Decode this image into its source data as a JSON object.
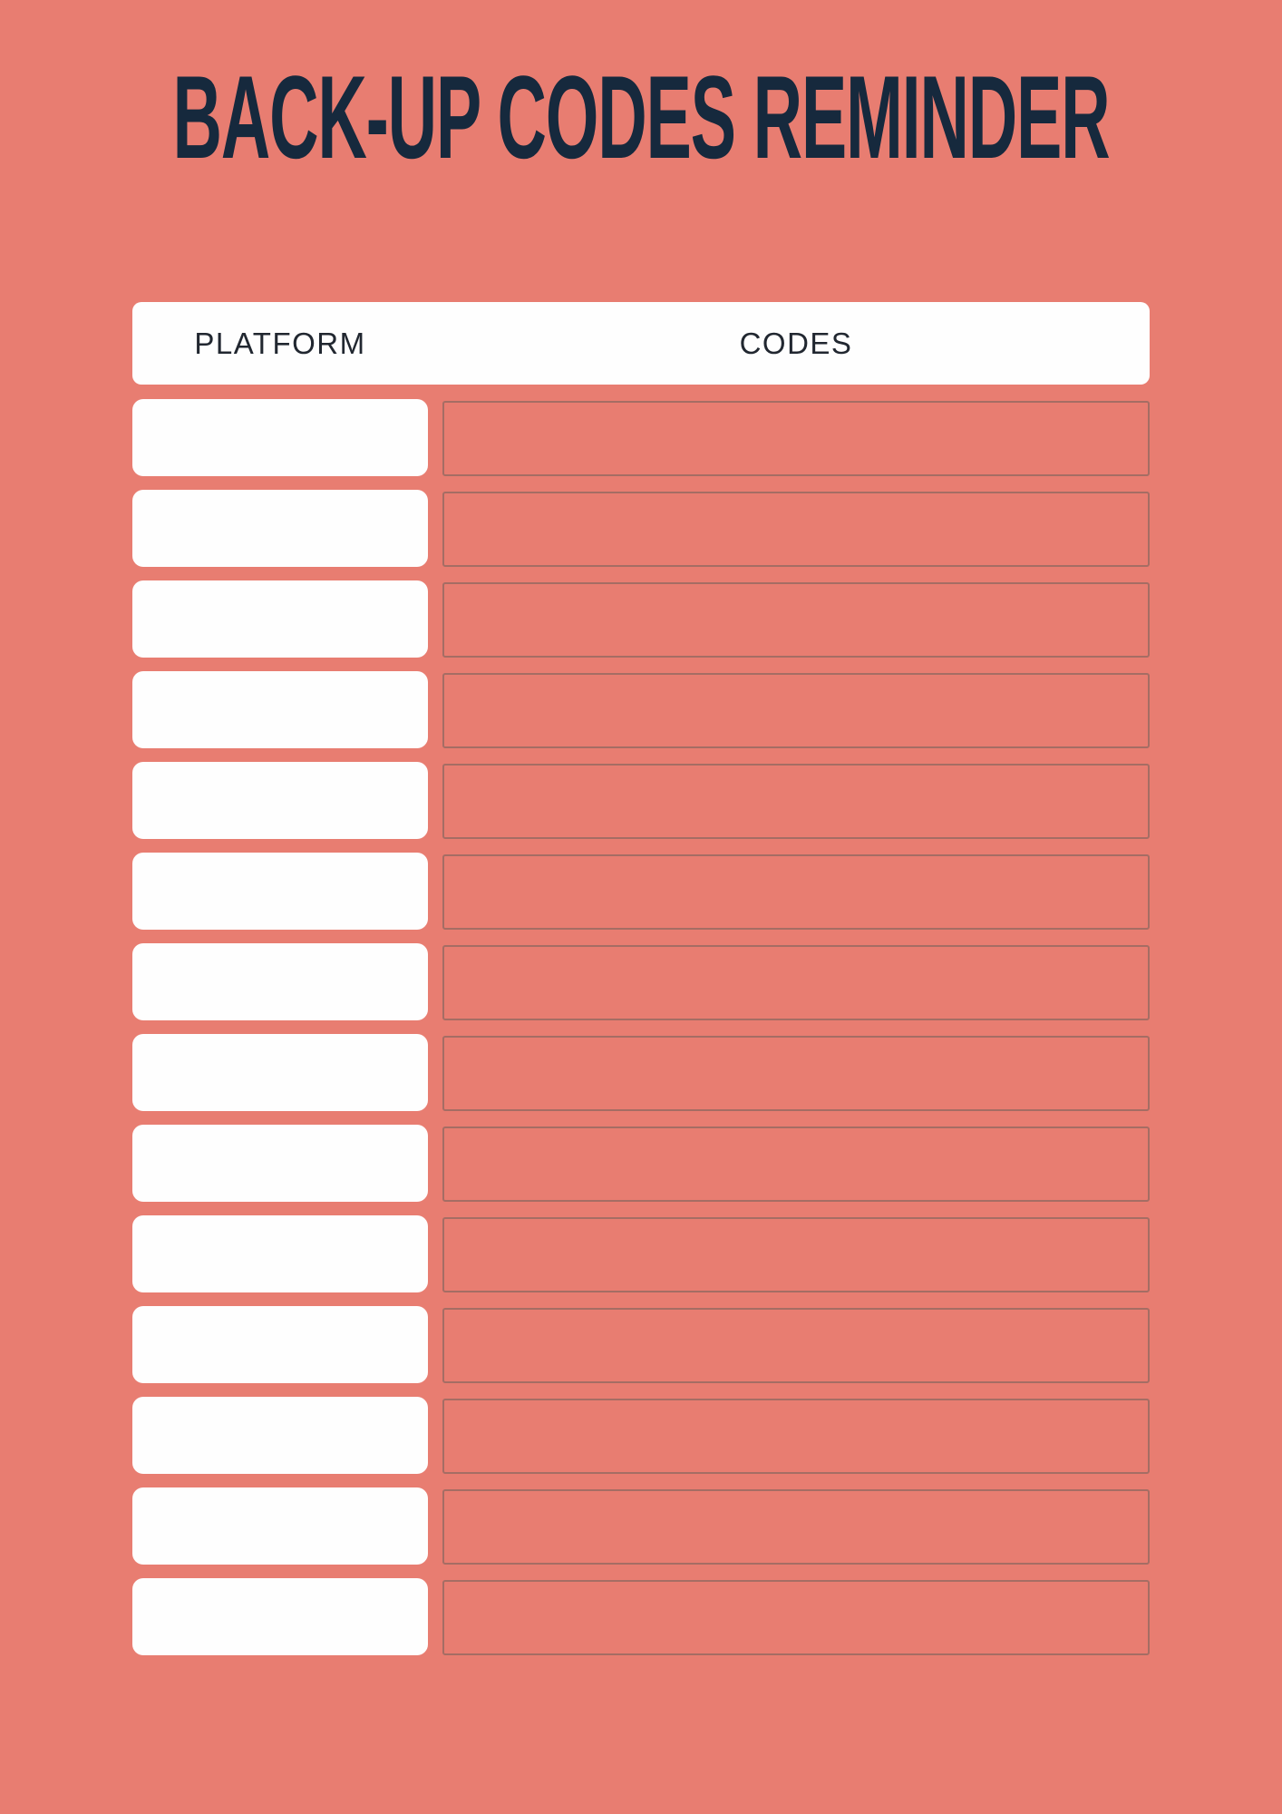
{
  "title": "BACK-UP CODES REMINDER",
  "table": {
    "headers": {
      "platform": "PLATFORM",
      "codes": "CODES"
    },
    "rows": [
      {
        "platform": "",
        "codes": ""
      },
      {
        "platform": "",
        "codes": ""
      },
      {
        "platform": "",
        "codes": ""
      },
      {
        "platform": "",
        "codes": ""
      },
      {
        "platform": "",
        "codes": ""
      },
      {
        "platform": "",
        "codes": ""
      },
      {
        "platform": "",
        "codes": ""
      },
      {
        "platform": "",
        "codes": ""
      },
      {
        "platform": "",
        "codes": ""
      },
      {
        "platform": "",
        "codes": ""
      },
      {
        "platform": "",
        "codes": ""
      },
      {
        "platform": "",
        "codes": ""
      },
      {
        "platform": "",
        "codes": ""
      },
      {
        "platform": "",
        "codes": ""
      }
    ]
  },
  "colors": {
    "background": "#E87D71",
    "title_text": "#16293D",
    "header_text": "#212730",
    "box_fill": "#FEFEFE",
    "codes_border": "rgba(110,96,90,0.55)"
  }
}
